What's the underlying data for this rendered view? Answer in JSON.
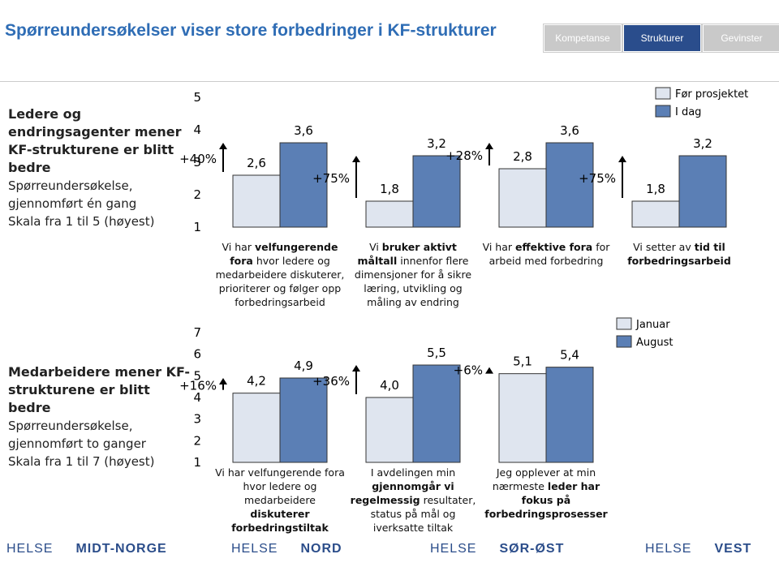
{
  "header": {
    "title": "Spørreundersøkelser viser store forbedringer i KF-strukturer",
    "tabs": [
      "Kompetanse",
      "Strukturer",
      "Gevinster"
    ],
    "active_tab": 1
  },
  "rows": [
    {
      "heading": "Ledere og endringsagenter mener KF-strukturene er blitt bedre",
      "lines": [
        "Spørreundersøkelse, gjennomført én gang",
        "Skala fra 1 til 5 (høyest)"
      ]
    },
    {
      "heading": "Medarbeidere mener KF-strukturene er blitt bedre",
      "lines": [
        "Spørreundersøkelse, gjennomført to ganger",
        "Skala fra 1 til 7 (høyest)"
      ]
    }
  ],
  "chart_data": [
    {
      "type": "bar",
      "ylim": [
        1,
        5
      ],
      "yticks": [
        1,
        2,
        3,
        4,
        5
      ],
      "categories": [
        [
          {
            "text": "Vi har ",
            "bold": false
          },
          {
            "text": "velfungerende fora",
            "bold": true
          },
          {
            "text": " hvor ledere og medarbeidere diskuterer, prioriterer og følger opp forbedringsarbeid",
            "bold": false
          }
        ],
        [
          {
            "text": "Vi ",
            "bold": false
          },
          {
            "text": "bruker aktivt måltall",
            "bold": true
          },
          {
            "text": " innenfor flere dimensjoner for å sikre læring, utvikling og måling av endring",
            "bold": false
          }
        ],
        [
          {
            "text": "Vi har ",
            "bold": false
          },
          {
            "text": "effektive fora",
            "bold": true
          },
          {
            "text": " for arbeid med forbedring",
            "bold": false
          }
        ],
        [
          {
            "text": "Vi setter av ",
            "bold": false
          },
          {
            "text": "tid til forbedringsarbeid",
            "bold": true
          }
        ]
      ],
      "series": [
        {
          "name": "Før prosjektet",
          "color": "#dfe5ef",
          "values": [
            2.6,
            1.8,
            2.8,
            1.8
          ],
          "value_labels": [
            "2,6",
            "1,8",
            "2,8",
            "1,8"
          ]
        },
        {
          "name": "I dag",
          "color": "#5b7fb5",
          "values": [
            3.6,
            3.2,
            3.6,
            3.2
          ],
          "value_labels": [
            "3,6",
            "3,2",
            "3,6",
            "3,2"
          ]
        }
      ],
      "changes": [
        "+40%",
        "+75%",
        "+28%",
        "+75%"
      ]
    },
    {
      "type": "bar",
      "ylim": [
        1,
        7
      ],
      "yticks": [
        1,
        2,
        3,
        4,
        5,
        6,
        7
      ],
      "categories": [
        [
          {
            "text": "Vi har velfungerende fora hvor ledere og medarbeidere ",
            "bold": false
          },
          {
            "text": "diskuterer forbedringstiltak",
            "bold": true
          }
        ],
        [
          {
            "text": "I avdelingen min ",
            "bold": false
          },
          {
            "text": "gjennomgår vi regelmessig",
            "bold": true
          },
          {
            "text": " resultater, status på mål og iverksatte tiltak",
            "bold": false
          }
        ],
        [
          {
            "text": "Jeg opplever at min nærmeste ",
            "bold": false
          },
          {
            "text": "leder har fokus på forbedringsprosesser",
            "bold": true
          }
        ]
      ],
      "series": [
        {
          "name": "Januar",
          "color": "#dfe5ef",
          "values": [
            4.2,
            4.0,
            5.1
          ],
          "value_labels": [
            "4,2",
            "4,0",
            "5,1"
          ]
        },
        {
          "name": "August",
          "color": "#5b7fb5",
          "values": [
            4.9,
            5.5,
            5.4
          ],
          "value_labels": [
            "4,9",
            "5,5",
            "5,4"
          ]
        }
      ],
      "changes": [
        "+16%",
        "+36%",
        "+6%"
      ]
    }
  ],
  "footer": {
    "logos": [
      {
        "prefix": "HELSE",
        "name": "MIDT-NORGE"
      },
      {
        "prefix": "HELSE",
        "name": "NORD"
      },
      {
        "prefix": "HELSE",
        "name": "SØR-ØST"
      },
      {
        "prefix": "HELSE",
        "name": "VEST"
      }
    ]
  }
}
